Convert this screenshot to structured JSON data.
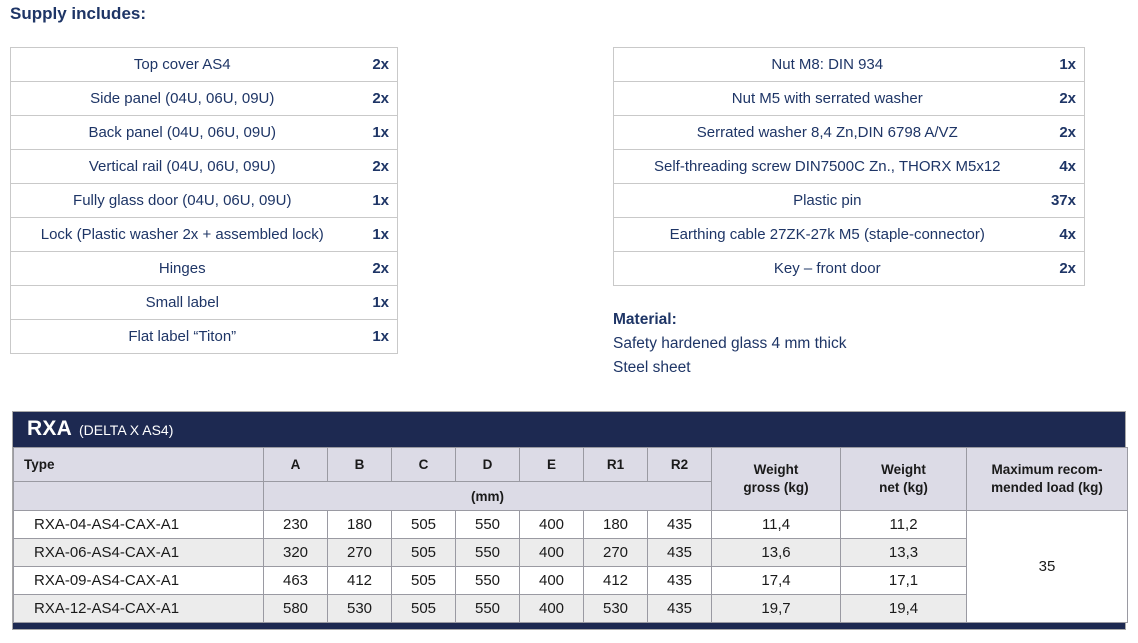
{
  "supply_heading": "Supply includes:",
  "supply_left": {
    "items": [
      {
        "name": "Top cover AS4",
        "qty": "2x"
      },
      {
        "name": "Side panel (04U, 06U, 09U)",
        "qty": "2x"
      },
      {
        "name": "Back panel (04U, 06U, 09U)",
        "qty": "1x"
      },
      {
        "name": "Vertical rail (04U, 06U, 09U)",
        "qty": "2x"
      },
      {
        "name": "Fully glass door (04U, 06U, 09U)",
        "qty": "1x"
      },
      {
        "name": "Lock (Plastic washer 2x + assembled lock)",
        "qty": "1x"
      },
      {
        "name": "Hinges",
        "qty": "2x"
      },
      {
        "name": "Small label",
        "qty": "1x"
      },
      {
        "name": "Flat label “Titon”",
        "qty": "1x"
      }
    ]
  },
  "supply_right": {
    "items": [
      {
        "name": "Nut M8: DIN 934",
        "qty": "1x"
      },
      {
        "name": "Nut M5 with serrated washer",
        "qty": "2x"
      },
      {
        "name": "Serrated washer 8,4 Zn,DIN 6798 A/VZ",
        "qty": "2x"
      },
      {
        "name": "Self-threading screw DIN7500C Zn., THORX M5x12",
        "qty": "4x"
      },
      {
        "name": "Plastic pin",
        "qty": "37x"
      },
      {
        "name": "Earthing cable 27ZK-27k M5 (staple-connector)",
        "qty": "4x"
      },
      {
        "name": "Key – front door",
        "qty": "2x"
      }
    ]
  },
  "material": {
    "heading": "Material:",
    "lines": [
      "Safety hardened glass 4 mm thick",
      "Steel sheet"
    ]
  },
  "spec_table": {
    "title": "RXA",
    "subtitle": "(DELTA X AS4)",
    "col_type": "Type",
    "dim_cols": [
      "A",
      "B",
      "C",
      "D",
      "E",
      "R1",
      "R2"
    ],
    "unit_row": "(mm)",
    "col_weight_gross": "Weight\ngross (kg)",
    "col_weight_net": "Weight\nnet (kg)",
    "col_max_load": "Maximum recom-\nmended load (kg)",
    "rows": [
      {
        "type": "RXA-04-AS4-CAX-A1",
        "values": [
          "230",
          "180",
          "505",
          "550",
          "400",
          "180",
          "435",
          "11,4",
          "11,2"
        ]
      },
      {
        "type": "RXA-06-AS4-CAX-A1",
        "values": [
          "320",
          "270",
          "505",
          "550",
          "400",
          "270",
          "435",
          "13,6",
          "13,3"
        ]
      },
      {
        "type": "RXA-09-AS4-CAX-A1",
        "values": [
          "463",
          "412",
          "505",
          "550",
          "400",
          "412",
          "435",
          "17,4",
          "17,1"
        ]
      },
      {
        "type": "RXA-12-AS4-CAX-A1",
        "values": [
          "580",
          "530",
          "505",
          "550",
          "400",
          "530",
          "435",
          "19,7",
          "19,4"
        ]
      }
    ],
    "max_load": "35"
  },
  "colors": {
    "navy_text": "#1e3566",
    "band_navy": "#1d2951",
    "header_bg": "#dcdbe6",
    "alt_row": "#ececec"
  }
}
